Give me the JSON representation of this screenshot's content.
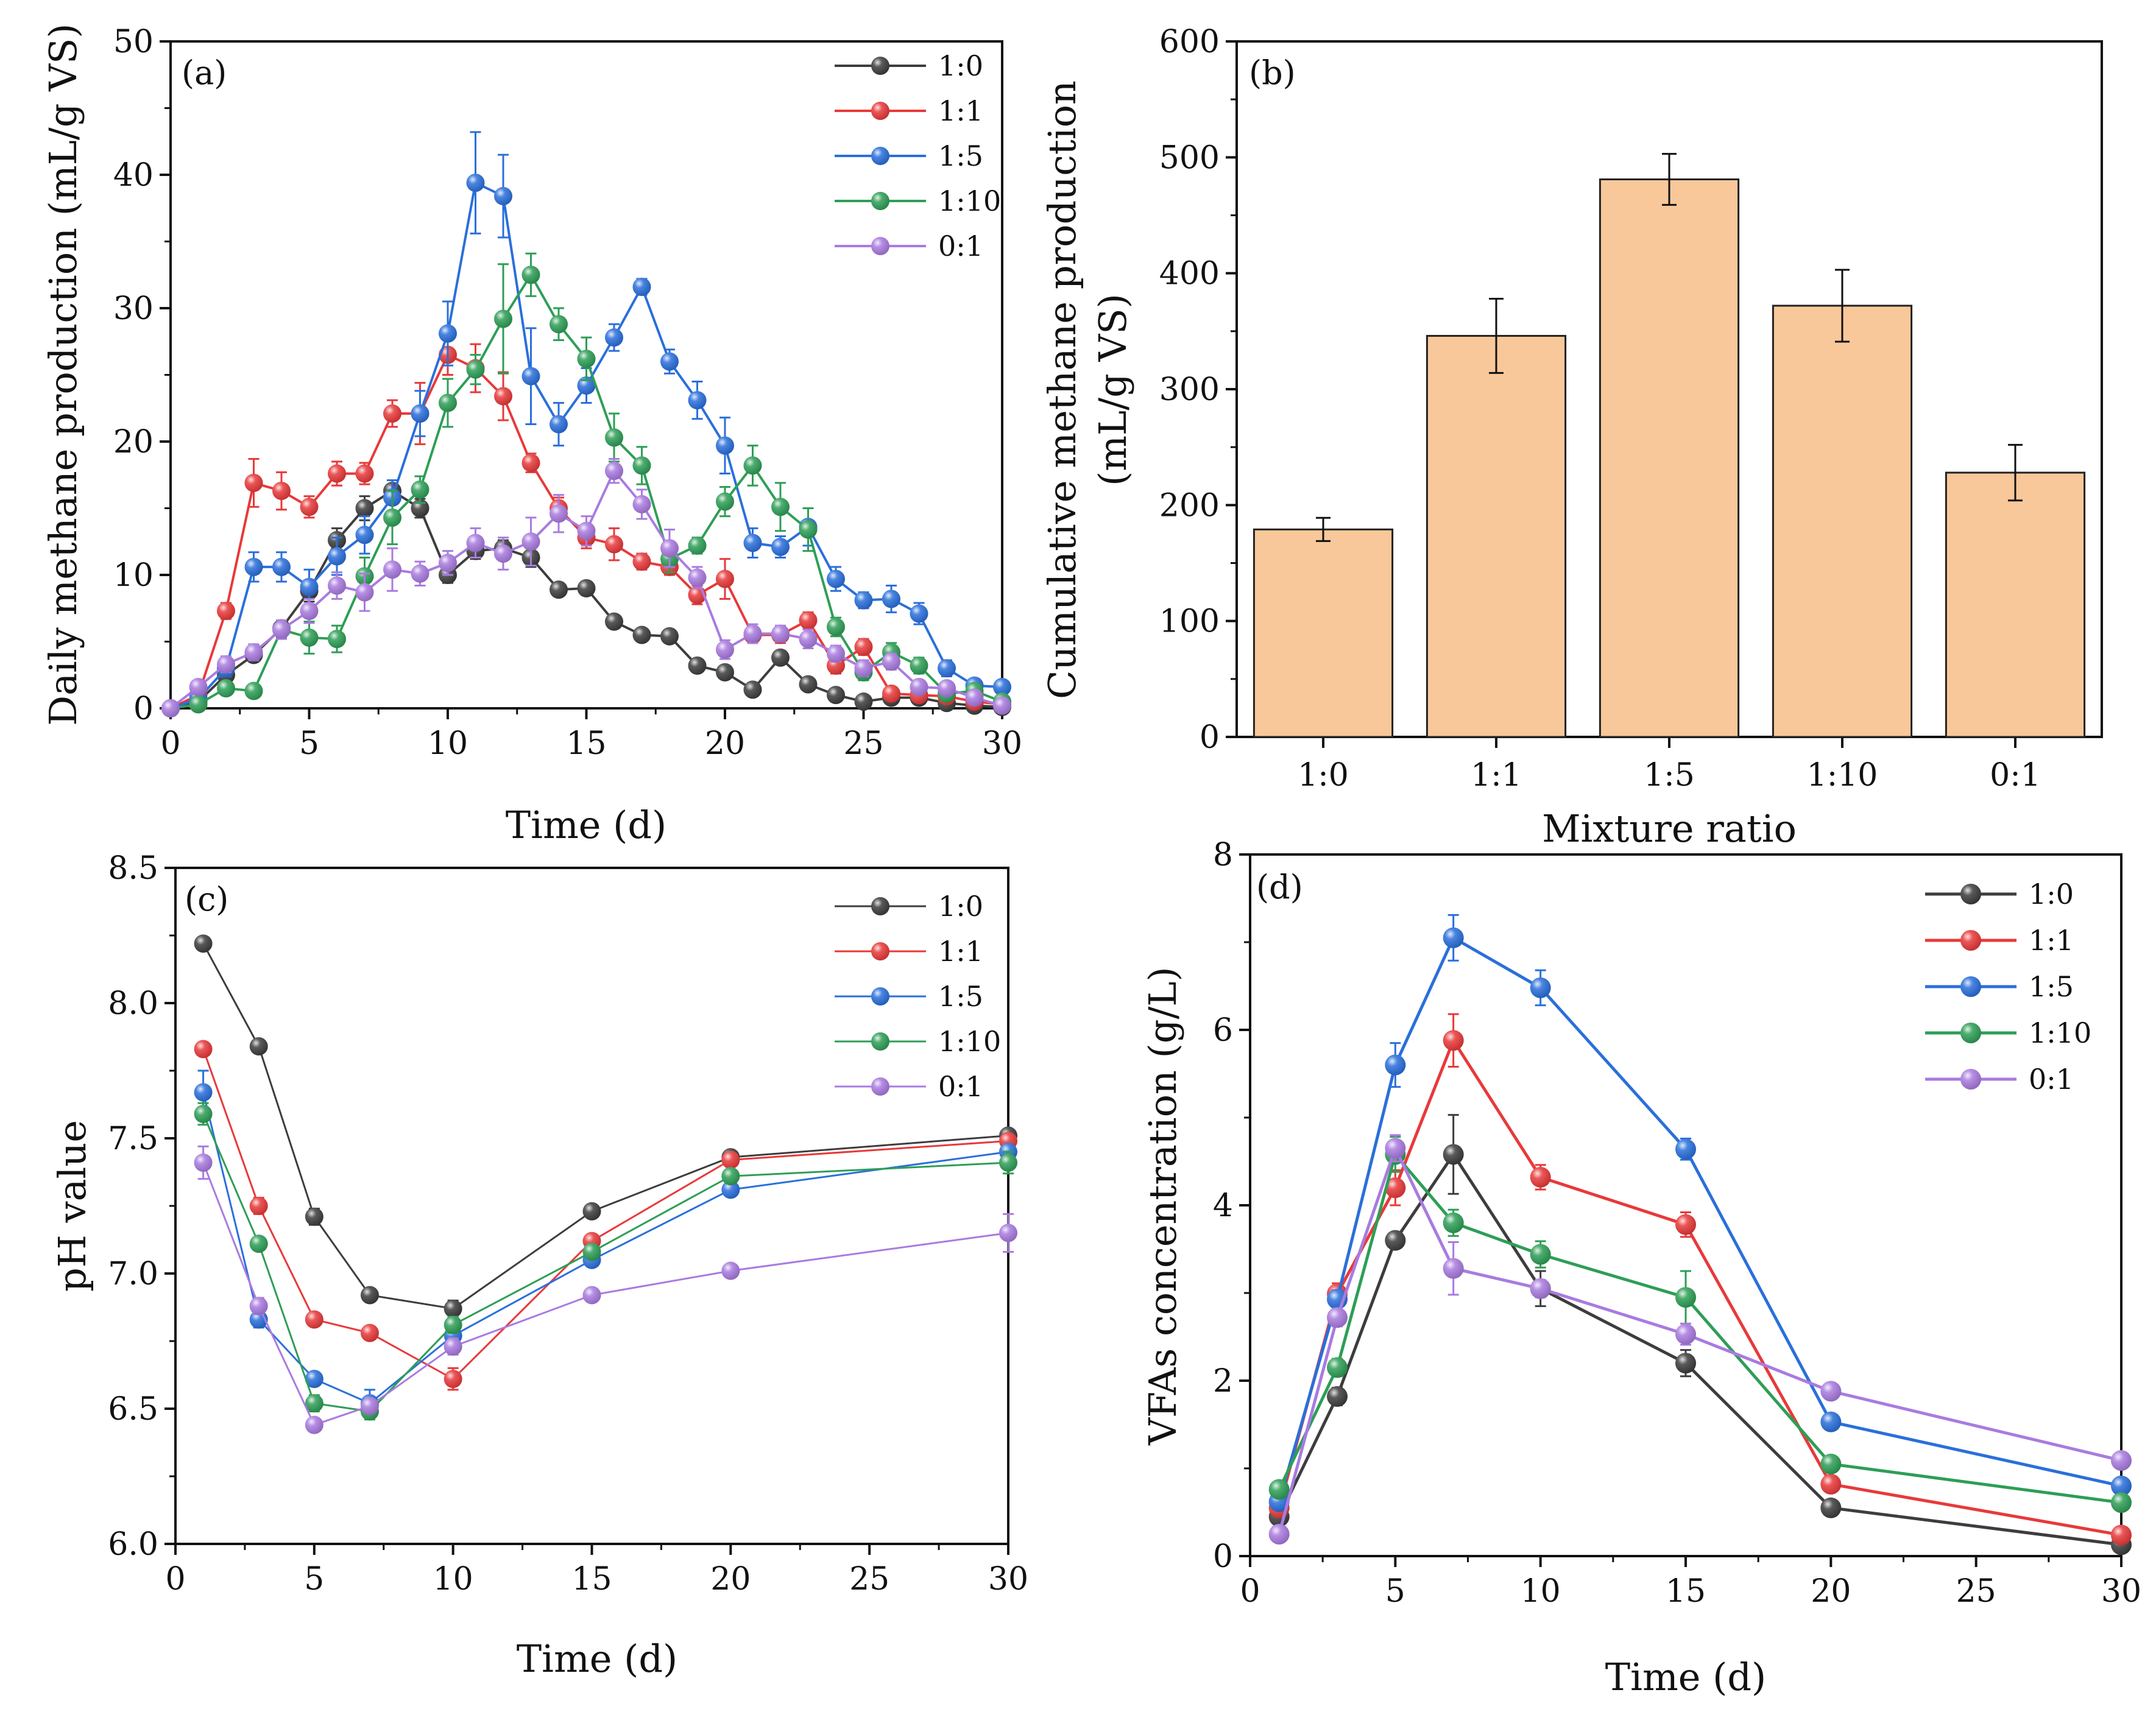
{
  "colors": {
    "s1_0": "#3d3d3d",
    "s1_1": "#e8393a",
    "s1_5": "#2a6fdb",
    "s1_10": "#2e9e56",
    "s0_1": "#a97be0",
    "bar_fill": "#f8c89a",
    "bar_stroke": "#222222"
  },
  "chart_data": [
    {
      "panel": "(a)",
      "type": "line",
      "title": "",
      "xlabel": "Time (d)",
      "ylabel": "Daily methane production (mL/g VS)",
      "xlim": [
        0,
        30
      ],
      "ylim": [
        0,
        50
      ],
      "xticks": [
        0,
        5,
        10,
        15,
        20,
        25,
        30
      ],
      "yticks": [
        0,
        10,
        20,
        30,
        40,
        50
      ],
      "legend_position": "top-right",
      "x": [
        0,
        1,
        2,
        3,
        4,
        5,
        6,
        7,
        8,
        9,
        10,
        11,
        12,
        13,
        14,
        15,
        16,
        17,
        18,
        19,
        20,
        21,
        22,
        23,
        24,
        25,
        26,
        27,
        28,
        29,
        30
      ],
      "series": [
        {
          "name": "1:0",
          "color_key": "s1_0",
          "values": [
            0,
            0.5,
            2.5,
            4.0,
            6.0,
            8.8,
            12.6,
            15.0,
            16.3,
            15.0,
            10.0,
            11.8,
            12.0,
            11.3,
            8.9,
            9.0,
            6.5,
            5.5,
            5.4,
            3.2,
            2.7,
            1.4,
            3.8,
            1.8,
            1.0,
            0.5,
            0.8,
            0.8,
            0.4,
            0.2,
            0.1
          ],
          "err": [
            0,
            0.3,
            0.5,
            0.5,
            0.6,
            0.8,
            0.9,
            0.9,
            0.8,
            0.7,
            0.6,
            0.6,
            0.6,
            0.7,
            0.5,
            0.5,
            0.4,
            0.4,
            0.4,
            0.3,
            0.3,
            0.3,
            0.4,
            0.3,
            0.2,
            0.2,
            0.2,
            0.2,
            0.2,
            0.1,
            0.1
          ]
        },
        {
          "name": "1:1",
          "color_key": "s1_1",
          "values": [
            0,
            1.0,
            7.3,
            16.9,
            16.3,
            15.1,
            17.6,
            17.6,
            22.1,
            22.1,
            26.5,
            25.5,
            23.4,
            18.4,
            15.0,
            12.8,
            12.3,
            11.0,
            10.6,
            8.5,
            9.7,
            5.5,
            5.5,
            6.6,
            3.2,
            4.6,
            1.1,
            1.0,
            0.9,
            0.5,
            0.3
          ],
          "err": [
            0,
            0.4,
            0.6,
            1.8,
            1.4,
            0.8,
            0.9,
            0.8,
            1.0,
            2.3,
            1.5,
            1.8,
            1.8,
            0.7,
            0.8,
            0.8,
            1.2,
            0.6,
            0.6,
            0.7,
            1.5,
            0.6,
            0.6,
            0.6,
            0.6,
            0.6,
            0.3,
            0.3,
            0.3,
            0.2,
            0.2
          ]
        },
        {
          "name": "1:5",
          "color_key": "s1_5",
          "values": [
            0,
            0.7,
            3.0,
            10.6,
            10.6,
            9.1,
            11.4,
            13.0,
            15.8,
            22.1,
            28.1,
            39.4,
            38.4,
            24.9,
            21.3,
            24.2,
            27.8,
            31.6,
            26.0,
            23.1,
            19.7,
            12.4,
            12.1,
            13.6,
            9.7,
            8.1,
            8.2,
            7.1,
            3.0,
            1.7,
            1.6
          ],
          "err": [
            0,
            0.3,
            0.6,
            1.1,
            1.1,
            1.3,
            1.4,
            1.4,
            1.3,
            1.7,
            2.4,
            3.8,
            3.1,
            3.6,
            1.6,
            1.3,
            1.0,
            0.6,
            0.9,
            1.4,
            2.1,
            1.1,
            0.8,
            1.4,
            0.9,
            0.6,
            1.0,
            0.8,
            0.6,
            0.5,
            0.4
          ]
        },
        {
          "name": "1:10",
          "color_key": "s1_10",
          "values": [
            0,
            0.3,
            1.5,
            1.3,
            5.9,
            5.3,
            5.2,
            9.9,
            14.3,
            16.4,
            22.9,
            25.4,
            29.2,
            32.5,
            28.8,
            26.2,
            20.3,
            18.2,
            11.2,
            12.2,
            15.5,
            18.2,
            15.1,
            13.4,
            6.1,
            2.7,
            4.2,
            3.2,
            1.1,
            1.3,
            0.5
          ],
          "err": [
            0,
            0.2,
            0.4,
            0.4,
            0.6,
            1.2,
            1.0,
            1.4,
            2.0,
            1.0,
            1.8,
            1.1,
            4.1,
            1.6,
            1.2,
            1.6,
            1.8,
            1.4,
            1.0,
            0.6,
            1.1,
            1.5,
            1.8,
            1.6,
            0.7,
            0.6,
            0.7,
            0.6,
            0.3,
            0.3,
            0.2
          ]
        },
        {
          "name": "0:1",
          "color_key": "s0_1",
          "values": [
            0,
            1.6,
            3.3,
            4.2,
            5.9,
            7.3,
            9.2,
            8.7,
            10.4,
            10.1,
            10.9,
            12.4,
            11.6,
            12.5,
            14.6,
            13.3,
            17.8,
            15.3,
            12.0,
            9.8,
            4.4,
            5.6,
            5.6,
            5.2,
            4.1,
            3.0,
            3.5,
            1.6,
            1.5,
            0.8,
            0.2
          ],
          "err": [
            0,
            0.4,
            0.6,
            0.6,
            0.7,
            0.9,
            1.0,
            1.4,
            1.6,
            0.9,
            0.9,
            1.1,
            1.2,
            1.8,
            1.4,
            1.1,
            0.9,
            1.1,
            1.4,
            0.8,
            0.7,
            0.7,
            0.6,
            0.7,
            0.6,
            0.6,
            0.6,
            0.5,
            0.4,
            0.3,
            0.2
          ]
        }
      ]
    },
    {
      "panel": "(b)",
      "type": "bar",
      "title": "",
      "xlabel": "Mixture ratio",
      "ylabel_lines": [
        "Cumulative methane production",
        "(mL/g VS)"
      ],
      "ylim": [
        0,
        600
      ],
      "yticks": [
        0,
        100,
        200,
        300,
        400,
        500,
        600
      ],
      "categories": [
        "1:0",
        "1:1",
        "1:5",
        "1:10",
        "0:1"
      ],
      "values": [
        179,
        346,
        481,
        372,
        228
      ],
      "err": [
        10,
        32,
        22,
        31,
        24
      ]
    },
    {
      "panel": "(c)",
      "type": "line",
      "title": "",
      "xlabel": "Time (d)",
      "ylabel": "pH value",
      "xlim": [
        0,
        30
      ],
      "ylim": [
        6.0,
        8.5
      ],
      "xticks": [
        0,
        5,
        10,
        15,
        20,
        25,
        30
      ],
      "yticks": [
        6.0,
        6.5,
        7.0,
        7.5,
        8.0,
        8.5
      ],
      "ytick_labels": [
        "6.0",
        "6.5",
        "7.0",
        "7.5",
        "8.0",
        "8.5"
      ],
      "legend_position": "top-right",
      "x": [
        1,
        3,
        5,
        7,
        10,
        15,
        20,
        30
      ],
      "series": [
        {
          "name": "1:0",
          "color_key": "s1_0",
          "values": [
            8.22,
            7.84,
            7.21,
            6.92,
            6.87,
            7.23,
            7.43,
            7.51
          ],
          "err": [
            0.02,
            0.02,
            0.03,
            0.02,
            0.03,
            0.02,
            0.02,
            0.02
          ]
        },
        {
          "name": "1:1",
          "color_key": "s1_1",
          "values": [
            7.83,
            7.25,
            6.83,
            6.78,
            6.61,
            7.12,
            7.42,
            7.49
          ],
          "err": [
            0.02,
            0.03,
            0.02,
            0.02,
            0.04,
            0.02,
            0.02,
            0.02
          ]
        },
        {
          "name": "1:5",
          "color_key": "s1_5",
          "values": [
            7.67,
            6.83,
            6.61,
            6.52,
            6.77,
            7.05,
            7.31,
            7.45
          ],
          "err": [
            0.08,
            0.03,
            0.02,
            0.05,
            0.03,
            0.02,
            0.02,
            0.02
          ]
        },
        {
          "name": "1:10",
          "color_key": "s1_10",
          "values": [
            7.59,
            7.11,
            6.52,
            6.49,
            6.81,
            7.08,
            7.36,
            7.41
          ],
          "err": [
            0.04,
            0.02,
            0.03,
            0.03,
            0.03,
            0.02,
            0.02,
            0.04
          ]
        },
        {
          "name": "0:1",
          "color_key": "s0_1",
          "values": [
            7.41,
            6.88,
            6.44,
            6.51,
            6.73,
            6.92,
            7.01,
            7.15
          ],
          "err": [
            0.06,
            0.03,
            0.02,
            0.02,
            0.03,
            0.02,
            0.02,
            0.07
          ]
        }
      ]
    },
    {
      "panel": "(d)",
      "type": "line",
      "title": "",
      "xlabel": "Time (d)",
      "ylabel": "VFAs concentration (g/L)",
      "xlim": [
        0,
        30
      ],
      "ylim": [
        0,
        8
      ],
      "xticks": [
        0,
        5,
        10,
        15,
        20,
        25,
        30
      ],
      "yticks": [
        0,
        2,
        4,
        6,
        8
      ],
      "legend_position": "top-right",
      "x": [
        1,
        3,
        5,
        7,
        10,
        15,
        20,
        30
      ],
      "series": [
        {
          "name": "1:0",
          "color_key": "s1_0",
          "values": [
            0.45,
            1.82,
            3.6,
            4.58,
            3.05,
            2.2,
            0.55,
            0.13
          ],
          "err": [
            0.05,
            0.1,
            0.08,
            0.45,
            0.2,
            0.15,
            0.05,
            0.04
          ]
        },
        {
          "name": "1:1",
          "color_key": "s1_1",
          "values": [
            0.55,
            2.99,
            4.2,
            5.88,
            4.32,
            3.78,
            0.82,
            0.24
          ],
          "err": [
            0.05,
            0.12,
            0.2,
            0.3,
            0.14,
            0.14,
            0.05,
            0.04
          ]
        },
        {
          "name": "1:5",
          "color_key": "s1_5",
          "values": [
            0.62,
            2.93,
            5.6,
            7.05,
            6.48,
            4.64,
            1.53,
            0.8
          ],
          "err": [
            0.05,
            0.1,
            0.25,
            0.26,
            0.2,
            0.12,
            0.06,
            0.05
          ]
        },
        {
          "name": "1:10",
          "color_key": "s1_10",
          "values": [
            0.76,
            2.15,
            4.58,
            3.8,
            3.44,
            2.95,
            1.05,
            0.61
          ],
          "err": [
            0.05,
            0.1,
            0.2,
            0.15,
            0.15,
            0.3,
            0.06,
            0.05
          ]
        },
        {
          "name": "0:1",
          "color_key": "s0_1",
          "values": [
            0.25,
            2.72,
            4.65,
            3.28,
            3.05,
            2.53,
            1.88,
            1.09
          ],
          "err": [
            0.05,
            0.1,
            0.15,
            0.3,
            0.1,
            0.12,
            0.06,
            0.05
          ]
        }
      ]
    }
  ]
}
